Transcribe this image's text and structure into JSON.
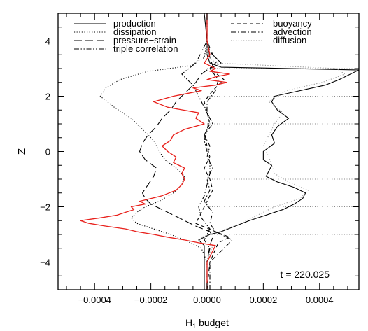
{
  "chart_data": {
    "type": "line",
    "title": "",
    "xlabel": "H",
    "xlabel_subscript": "1",
    "xlabel_suffix": " budget",
    "ylabel": "Z",
    "xlim": [
      -0.00053,
      0.00054
    ],
    "ylim": [
      -5,
      5
    ],
    "x_ticks": [
      -0.0004,
      -0.0002,
      0.0,
      0.0002,
      0.0004
    ],
    "x_tick_labels": [
      "−0.0004",
      "−0.0002",
      "0.0000",
      "0.0002",
      "0.0004"
    ],
    "y_ticks": [
      -4,
      -2,
      0,
      2,
      4
    ],
    "y_tick_labels": [
      "−4",
      "−2",
      "0",
      "2",
      "4"
    ],
    "reference_lines_z": [
      -3,
      -2,
      -1,
      1,
      2,
      3
    ],
    "annotation": "t = 220.025",
    "legend_placement": "top",
    "series": [
      {
        "name": "production",
        "color": "#000000",
        "dash": "solid",
        "z": [
          -5,
          -4,
          -3.4,
          -3.2,
          -3.0,
          -2.9,
          -2.7,
          -2.5,
          -2.3,
          -2.1,
          -1.9,
          -1.7,
          -1.5,
          -1.3,
          -1.1,
          -0.9,
          -0.7,
          -0.5,
          -0.3,
          0.0,
          0.3,
          0.6,
          0.9,
          1.2,
          1.5,
          1.8,
          2.0,
          2.2,
          2.4,
          2.6,
          2.8,
          2.95,
          3.05,
          3.2,
          3.5,
          4,
          5
        ],
        "h": [
          -1e-05,
          -1e-05,
          -1e-05,
          -3e-05,
          1e-05,
          5e-05,
          0.0001,
          0.00015,
          0.00021,
          0.00027,
          0.00031,
          0.00034,
          0.00035,
          0.00031,
          0.00025,
          0.00021,
          0.00022,
          0.00023,
          0.0002,
          0.0002,
          0.00024,
          0.00023,
          0.00025,
          0.00029,
          0.00025,
          0.00023,
          0.00024,
          0.00033,
          0.00042,
          0.00047,
          0.00051,
          0.00054,
          5e-05,
          1e-05,
          0.0,
          0.0,
          -1e-05
        ]
      },
      {
        "name": "dissipation",
        "color": "#000000",
        "dash": "dotted",
        "z": [
          -5,
          -4,
          -3.5,
          -3.2,
          -3.0,
          -2.8,
          -2.6,
          -2.4,
          -2.2,
          -2.0,
          -1.8,
          -1.5,
          -1.2,
          -0.9,
          -0.6,
          -0.3,
          0.0,
          0.4,
          0.8,
          1.2,
          1.6,
          2.0,
          2.3,
          2.6,
          2.9,
          3.1,
          3.4,
          4,
          5
        ],
        "h": [
          0.0,
          0.0,
          -2e-05,
          -8e-05,
          -0.00013,
          -0.00019,
          -0.00025,
          -0.00027,
          -0.00025,
          -0.00022,
          -0.00017,
          -0.00012,
          -9e-05,
          -8e-05,
          -0.00011,
          -0.00015,
          -0.00017,
          -0.00019,
          -0.00023,
          -0.00027,
          -0.00033,
          -0.00038,
          -0.00036,
          -0.00031,
          -0.00021,
          -6e-05,
          -1e-05,
          0.0,
          0.0
        ]
      },
      {
        "name": "pressure−strain",
        "color": "#000000",
        "dash": "longdash",
        "z": [
          -5,
          -4,
          -3.4,
          -3.1,
          -2.9,
          -2.7,
          -2.5,
          -2.3,
          -2.1,
          -1.9,
          -1.7,
          -1.5,
          -1.2,
          -0.9,
          -0.6,
          -0.3,
          0.0,
          0.3,
          0.6,
          0.9,
          1.2,
          1.5,
          1.8,
          2.0,
          2.2,
          2.5,
          2.8,
          3.1,
          3.4,
          4,
          5
        ],
        "h": [
          0.0,
          0.0,
          1e-05,
          2e-05,
          1e-05,
          -4e-05,
          -8e-05,
          -0.00012,
          -0.00016,
          -0.0002,
          -0.00022,
          -0.00023,
          -0.00021,
          -0.00019,
          -0.00018,
          -0.00022,
          -0.00024,
          -0.00023,
          -0.00021,
          -0.00018,
          -0.00016,
          -0.00013,
          -0.00011,
          -9e-05,
          -7e-05,
          -4e-05,
          -2e-05,
          2e-05,
          1e-05,
          0.0,
          0.0
        ]
      },
      {
        "name": "triple correlation",
        "color": "#000000",
        "dash": "dashdotdot",
        "z": [
          -5,
          -4,
          -3.5,
          -3.2,
          -2.8,
          -2.4,
          -2.0,
          -1.6,
          -1.2,
          -0.8,
          -0.4,
          0.0,
          0.4,
          0.8,
          1.2,
          1.6,
          2.0,
          2.4,
          2.8,
          3.2,
          3.6,
          4,
          5
        ],
        "h": [
          0.0,
          0.0,
          1e-05,
          -1e-05,
          1e-05,
          -2e-05,
          -3e-05,
          -1e-05,
          0.0,
          1e-05,
          1e-05,
          0.0,
          -1e-05,
          0.0,
          1e-05,
          -1e-05,
          -3e-05,
          -5e-05,
          -9e-05,
          -4e-05,
          -2e-05,
          0.0,
          0.0
        ]
      },
      {
        "name": "buoyancy",
        "color": "#000000",
        "dash": "dashed",
        "z": [
          -5,
          -4,
          -3.3,
          -3.1,
          -2.9,
          -2.6,
          -2.2,
          -1.8,
          -1.4,
          -1.0,
          -0.6,
          -0.2,
          0.2,
          0.6,
          1.0,
          1.4,
          1.8,
          2.2,
          2.6,
          3.0,
          3.3,
          3.6,
          4,
          5
        ],
        "h": [
          0.0,
          1e-05,
          4e-05,
          8e-05,
          3e-05,
          -4e-05,
          -2e-05,
          0.0,
          2e-05,
          1e-05,
          -1e-05,
          1e-05,
          0.0,
          -1e-05,
          1e-05,
          0.0,
          -1e-05,
          2e-05,
          6e-05,
          1e-05,
          4e-05,
          1e-05,
          0.0,
          0.0
        ]
      },
      {
        "name": "advection",
        "color": "#000000",
        "dash": "dashdot",
        "z": [
          -5,
          -4,
          -3.5,
          -3.2,
          -2.9,
          -2.6,
          -2.2,
          -1.8,
          -1.4,
          -1.0,
          -0.6,
          -0.2,
          0.2,
          0.6,
          1.0,
          1.4,
          1.8,
          2.2,
          2.6,
          3.0,
          3.2,
          3.5,
          4,
          5
        ],
        "h": [
          1e-05,
          1e-05,
          6e-05,
          9e-05,
          3e-05,
          1e-05,
          2e-05,
          -1e-05,
          1e-05,
          0.0,
          2e-05,
          0.0,
          1e-05,
          -1e-05,
          2e-05,
          0.0,
          0.0,
          3e-05,
          4e-05,
          1e-05,
          5e-05,
          2e-05,
          0.0,
          0.0
        ]
      },
      {
        "name": "diffusion",
        "color": "#999999",
        "dash": "dotted",
        "z": [
          -5,
          -4,
          -3.4,
          -3.1,
          -2.9,
          -2.6,
          -2.3,
          -2.0,
          -1.7,
          -1.4,
          -1.1,
          -0.8,
          -0.5,
          -0.2,
          0.2,
          0.6,
          1.0,
          1.4,
          1.8,
          2.2,
          2.5,
          2.8,
          3.0,
          3.2,
          3.5,
          4,
          5
        ],
        "h": [
          0.0,
          0.0,
          2e-05,
          -2e-05,
          4e-05,
          0.00012,
          0.00018,
          0.00024,
          0.00033,
          0.00036,
          0.00029,
          0.00024,
          0.00023,
          0.00022,
          0.0002,
          0.00022,
          0.00024,
          0.00027,
          0.00022,
          0.00028,
          0.00041,
          0.00049,
          0.00046,
          3e-05,
          0.0,
          0.0,
          0.0
        ]
      },
      {
        "name": "",
        "color": "#e8211c",
        "dash": "solid",
        "z": [
          -5,
          -4,
          -3.6,
          -3.4,
          -3.3,
          -3.2,
          -3.1,
          -3.0,
          -2.9,
          -2.8,
          -2.7,
          -2.6,
          -2.5,
          -2.4,
          -2.3,
          -2.2,
          -2.1,
          -2.0,
          -1.9,
          -1.8,
          -1.6,
          -1.4,
          -1.2,
          -1.0,
          -0.8,
          -0.6,
          -0.4,
          -0.2,
          0.0,
          0.2,
          0.4,
          0.6,
          0.8,
          1.0,
          1.2,
          1.4,
          1.6,
          1.8,
          2.0,
          2.1,
          2.2,
          2.3,
          2.4,
          2.5,
          2.6,
          2.7,
          2.8,
          2.9,
          3.0,
          3.2,
          3.5,
          4,
          5
        ],
        "h": [
          0.0,
          0.0,
          2e-05,
          3e-05,
          -3e-05,
          -8e-05,
          -0.00014,
          -0.00019,
          -0.00025,
          -0.00029,
          -0.00036,
          -0.00042,
          -0.00045,
          -0.00038,
          -0.00032,
          -0.00029,
          -0.00026,
          -0.00027,
          -0.00022,
          -0.00024,
          -0.00016,
          -0.00011,
          -9e-05,
          -8e-05,
          -9e-05,
          -8e-05,
          -0.00012,
          -0.00011,
          -0.00014,
          -0.00016,
          -0.00013,
          -0.00012,
          -8e-05,
          -1e-05,
          -4e-05,
          -3e-05,
          -0.00014,
          -0.00019,
          -0.00012,
          -7e-05,
          -2e-05,
          -5e-05,
          3e-05,
          7e-05,
          0.0,
          3e-05,
          8e-05,
          1e-05,
          3e-05,
          -1e-05,
          1e-05,
          0.0,
          0.0
        ]
      }
    ]
  }
}
